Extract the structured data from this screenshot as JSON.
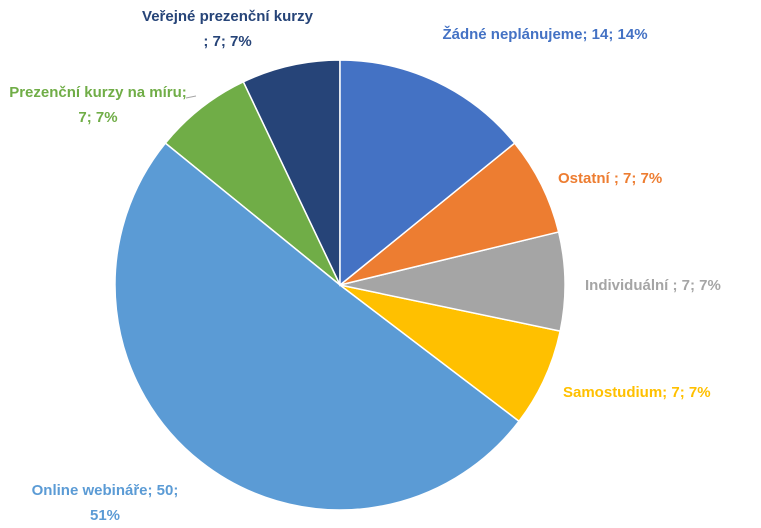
{
  "chart_data": {
    "type": "pie",
    "categories": [
      "Žádné neplánujeme;",
      "Ostatní ;",
      "Individuální ;",
      "Samostudium;",
      "Online webináře;",
      "Prezenční kurzy na míru;",
      "Veřejné prezenční kurzy ;"
    ],
    "values": [
      14,
      7,
      7,
      7,
      50,
      7,
      7
    ],
    "value_labels": [
      "14; 14%",
      "7; 7%",
      "7; 7%",
      "7; 7%",
      "50; 51%",
      "7; 7%",
      "7; 7%"
    ],
    "colors": [
      "#4472c4",
      "#ed7d31",
      "#a5a5a5",
      "#ffc000",
      "#5b9bd5",
      "#70ad47",
      "#264478"
    ]
  }
}
